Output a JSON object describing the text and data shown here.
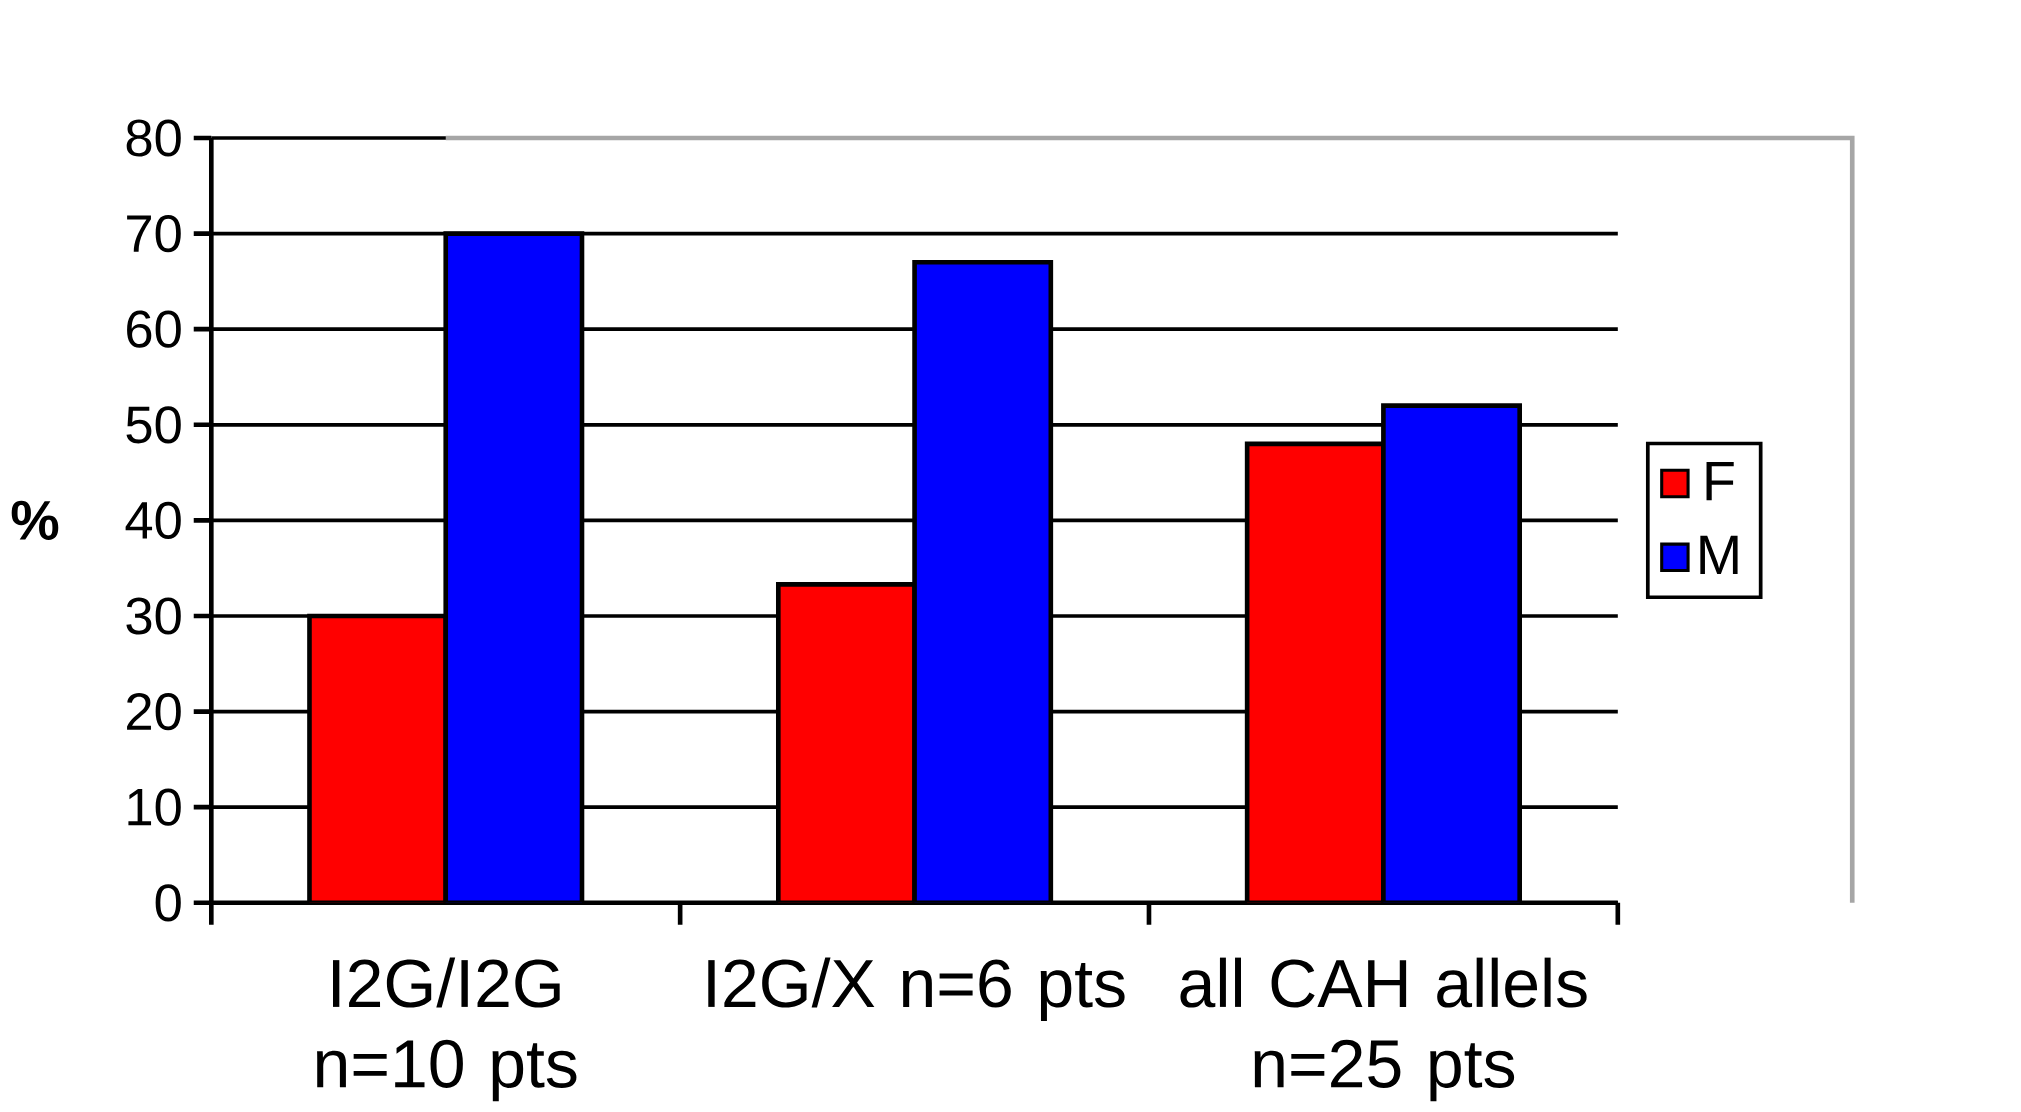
{
  "chart_data": {
    "type": "bar",
    "ylabel": "%",
    "categories": [
      "I2G/I2G n=10 pts",
      "I2G/X n=6 pts",
      "all CAH allels n=25 pts"
    ],
    "series": [
      {
        "name": "F",
        "color": "#ff0000",
        "values": [
          30,
          33.3,
          48
        ]
      },
      {
        "name": "M",
        "color": "#0000ff",
        "values": [
          70,
          67,
          52
        ]
      }
    ],
    "ylim": [
      0,
      80
    ],
    "yticks": [
      0,
      10,
      20,
      30,
      40,
      50,
      60,
      70,
      80
    ],
    "grid": "y",
    "legend": "right"
  }
}
